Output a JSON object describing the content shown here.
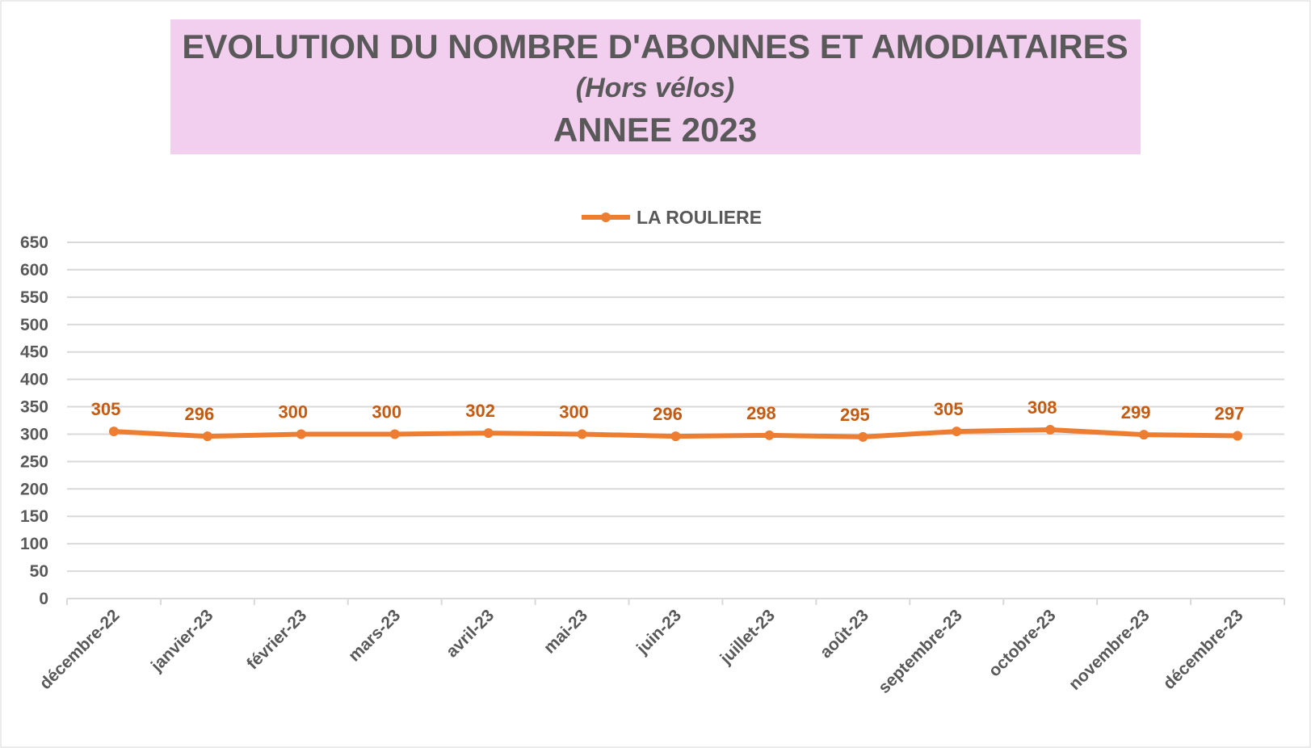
{
  "chart_data": {
    "type": "line",
    "title_lines": [
      "EVOLUTION DU NOMBRE D'ABONNES  ET AMODIATAIRES",
      "(Hors vélos)",
      "ANNEE 2023"
    ],
    "categories": [
      "décembre-22",
      "janvier-23",
      "février-23",
      "mars-23",
      "avril-23",
      "mai-23",
      "juin-23",
      "juillet-23",
      "août-23",
      "septembre-23",
      "octobre-23",
      "novembre-23",
      "décembre-23"
    ],
    "series": [
      {
        "name": "LA ROULIERE",
        "color": "#ED7D31",
        "label_color": "#C55A11",
        "values": [
          305,
          296,
          300,
          300,
          302,
          300,
          296,
          298,
          295,
          305,
          308,
          299,
          297
        ]
      }
    ],
    "ylim": [
      0,
      650
    ],
    "yticks": [
      0,
      50,
      100,
      150,
      200,
      250,
      300,
      350,
      400,
      450,
      500,
      550,
      600,
      650
    ],
    "grid": true,
    "legend": "top",
    "title_background": "#F2CEEF"
  }
}
